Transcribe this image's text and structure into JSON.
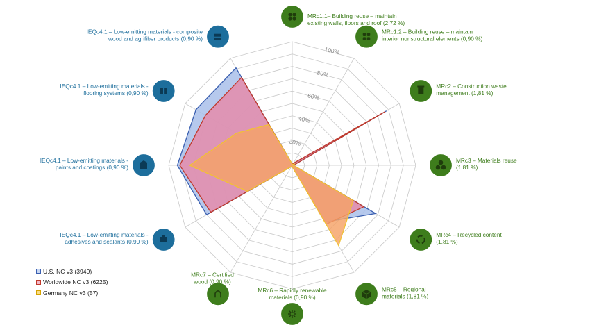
{
  "chart_data": {
    "type": "radar",
    "ticks": [
      "20%",
      "40%",
      "60%",
      "80%",
      "100%"
    ],
    "rlim": [
      0,
      100
    ],
    "categories": [
      {
        "lines": [
          "MRc1.1– Building reuse – maintain",
          "existing walls, floors and roof (2,72 %)"
        ],
        "group": "MR",
        "icon": "building-reuse-icon"
      },
      {
        "lines": [
          "MRc1.2 – Building reuse – maintain",
          "interior nonstructural elements (0,90 %)"
        ],
        "group": "MR",
        "icon": "interior-reuse-icon"
      },
      {
        "lines": [
          "MRc2 – Construction waste",
          "management (1,81 %)"
        ],
        "group": "MR",
        "icon": "waste-bin-icon"
      },
      {
        "lines": [
          "MRc3 – Materials reuse",
          "(1,81 %)"
        ],
        "group": "MR",
        "icon": "materials-reuse-icon"
      },
      {
        "lines": [
          "MRc4 – Recycled content",
          "(1,81 %)"
        ],
        "group": "MR",
        "icon": "recycle-icon"
      },
      {
        "lines": [
          "MRc5 – Regional",
          "materials (1,81 %)"
        ],
        "group": "MR",
        "icon": "regional-cube-icon"
      },
      {
        "lines": [
          "MRc6 – Rapidly renewable",
          "materials (0,90 %)"
        ],
        "group": "MR",
        "icon": "renewable-plant-icon"
      },
      {
        "lines": [
          "MRc7 – Certified",
          "wood (0,90 %)"
        ],
        "group": "MR",
        "icon": "certified-wood-icon"
      },
      {
        "lines": [
          "IEQc4.1 – Low-emitting materials -",
          "adhesives and sealants (0,90 %)"
        ],
        "group": "IEQ",
        "icon": "adhesive-tube-icon"
      },
      {
        "lines": [
          "IEQc4.1 – Low-emitting materials -",
          "paints and coatings (0,90 %)"
        ],
        "group": "IEQ",
        "icon": "paint-can-icon"
      },
      {
        "lines": [
          "IEQc4.1 – Low-emitting materials -",
          "flooring systems (0,90 %)"
        ],
        "group": "IEQ",
        "icon": "flooring-icon"
      },
      {
        "lines": [
          "IEQc4.1 – Low-emitting materials - composite",
          "wood and agrifiber products (0,90 %)"
        ],
        "group": "IEQ",
        "icon": "composite-wood-icon"
      }
    ],
    "series": [
      {
        "name": "U.S. NC v3 (3949)",
        "color": "#3a5fb0",
        "fill": "#a9c0ea",
        "values": [
          1,
          1,
          88,
          1,
          78,
          53,
          1,
          1,
          80,
          93,
          90,
          91
        ]
      },
      {
        "name": "Worldwide NC v3 (6225)",
        "color": "#c0392b",
        "fill": "#e68aa8",
        "values": [
          1,
          2,
          87,
          1,
          67,
          55,
          1,
          1,
          76,
          91,
          81,
          82
        ]
      },
      {
        "name": "Germany NC v3 (57)",
        "color": "#f1c232",
        "fill": "#f5a267",
        "values": [
          1,
          1,
          2,
          1,
          57,
          75,
          1,
          1,
          42,
          83,
          52,
          38
        ]
      }
    ],
    "group_colors": {
      "MR": "#3e7d1c",
      "IEQ": "#1d6e9c"
    }
  }
}
